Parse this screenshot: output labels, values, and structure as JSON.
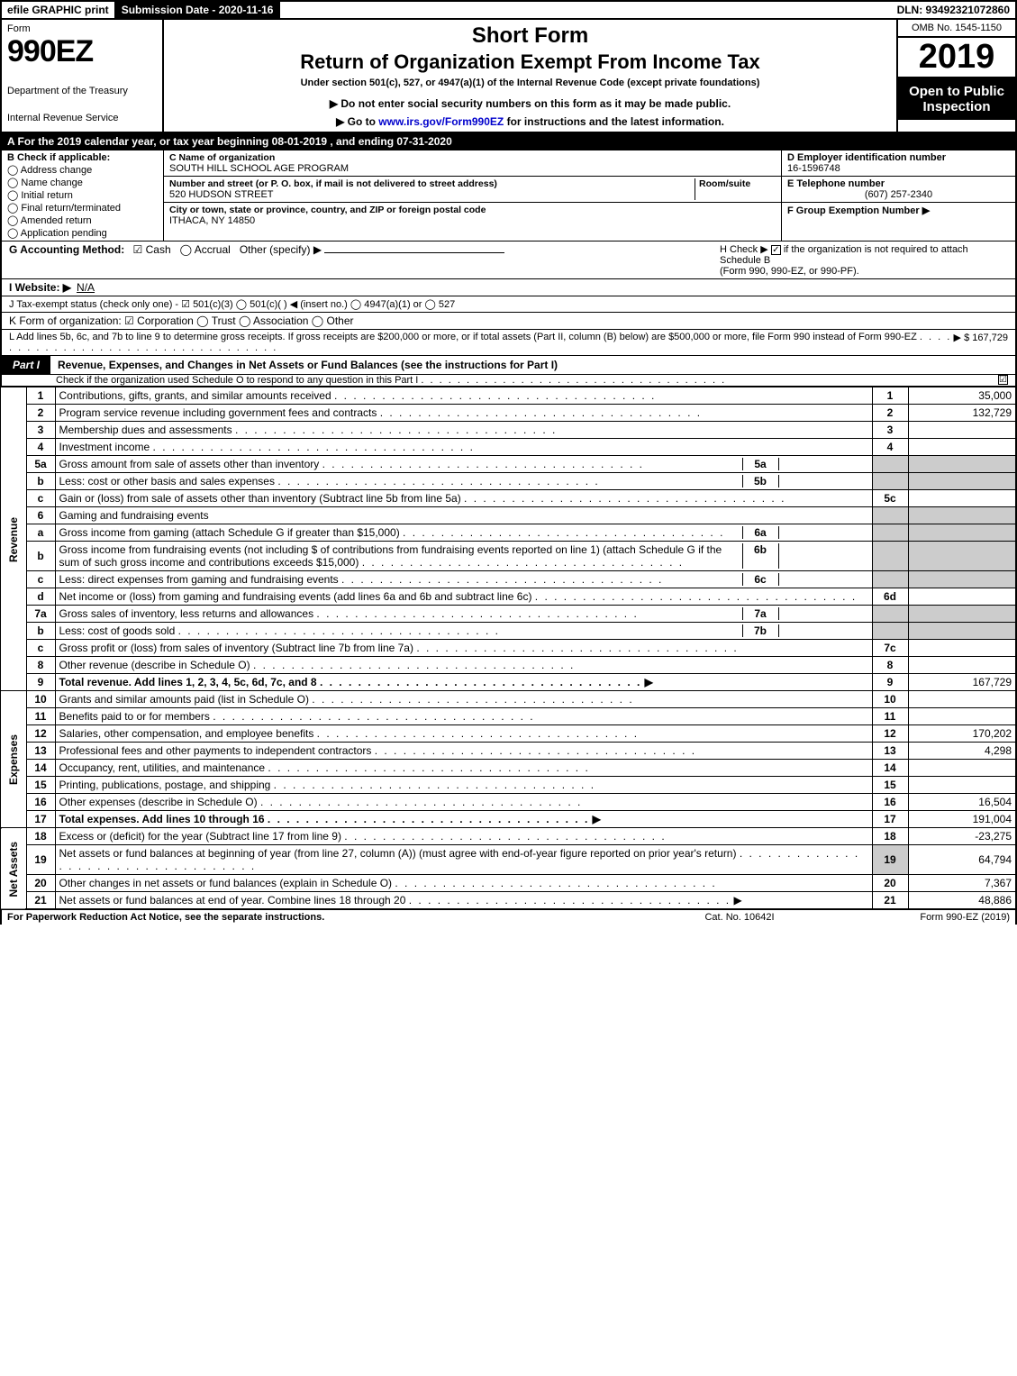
{
  "topbar": {
    "efile": "efile GRAPHIC print",
    "submission": "Submission Date - 2020-11-16",
    "dln": "DLN: 93492321072860"
  },
  "header": {
    "form_word": "Form",
    "form_no": "990EZ",
    "dept1": "Department of the Treasury",
    "dept2": "Internal Revenue Service",
    "short": "Short Form",
    "return": "Return of Organization Exempt From Income Tax",
    "under": "Under section 501(c), 527, or 4947(a)(1) of the Internal Revenue Code (except private foundations)",
    "warn": "▶ Do not enter social security numbers on this form as it may be made public.",
    "goto_pre": "▶ Go to ",
    "goto_link": "www.irs.gov/Form990EZ",
    "goto_post": " for instructions and the latest information.",
    "omb": "OMB No. 1545-1150",
    "year": "2019",
    "open": "Open to Public Inspection"
  },
  "period": "A  For the 2019 calendar year, or tax year beginning 08-01-2019 , and ending 07-31-2020",
  "B": {
    "title": "B  Check if applicable:",
    "opts": [
      "Address change",
      "Name change",
      "Initial return",
      "Final return/terminated",
      "Amended return",
      "Application pending"
    ]
  },
  "C": {
    "name_hdr": "C Name of organization",
    "name": "SOUTH HILL SCHOOL AGE PROGRAM",
    "addr_hdr": "Number and street (or P. O. box, if mail is not delivered to street address)",
    "room_hdr": "Room/suite",
    "addr": "520 HUDSON STREET",
    "city_hdr": "City or town, state or province, country, and ZIP or foreign postal code",
    "city": "ITHACA, NY  14850"
  },
  "D": {
    "hdr": "D Employer identification number",
    "val": "16-1596748"
  },
  "E": {
    "hdr": "E Telephone number",
    "val": "(607) 257-2340"
  },
  "F": {
    "hdr": "F Group Exemption Number  ▶"
  },
  "G": {
    "lbl": "G Accounting Method:",
    "cash": "Cash",
    "accrual": "Accrual",
    "other": "Other (specify) ▶"
  },
  "H": {
    "txt1": "H  Check ▶ ",
    "txt2": " if the organization is not required to attach Schedule B",
    "txt3": "(Form 990, 990-EZ, or 990-PF)."
  },
  "I": {
    "lbl": "I Website: ▶",
    "val": "N/A"
  },
  "J": {
    "txt": "J Tax-exempt status (check only one) -  ☑ 501(c)(3)  ◯ 501(c)(  ) ◀ (insert no.)  ◯ 4947(a)(1) or  ◯ 527"
  },
  "K": {
    "txt": "K Form of organization:   ☑ Corporation   ◯ Trust   ◯ Association   ◯ Other"
  },
  "L": {
    "txt": "L Add lines 5b, 6c, and 7b to line 9 to determine gross receipts. If gross receipts are $200,000 or more, or if total assets (Part II, column (B) below) are $500,000 or more, file Form 990 instead of Form 990-EZ",
    "amt": "▶ $ 167,729"
  },
  "part1": {
    "tag": "Part I",
    "title": "Revenue, Expenses, and Changes in Net Assets or Fund Balances (see the instructions for Part I)",
    "sub": "Check if the organization used Schedule O to respond to any question in this Part I",
    "ck": "☑"
  },
  "sections": {
    "rev": "Revenue",
    "exp": "Expenses",
    "net": "Net Assets"
  },
  "lines": [
    {
      "n": "1",
      "d": "Contributions, gifts, grants, and similar amounts received",
      "box": "1",
      "v": "35,000"
    },
    {
      "n": "2",
      "d": "Program service revenue including government fees and contracts",
      "box": "2",
      "v": "132,729"
    },
    {
      "n": "3",
      "d": "Membership dues and assessments",
      "box": "3",
      "v": ""
    },
    {
      "n": "4",
      "d": "Investment income",
      "box": "4",
      "v": ""
    },
    {
      "n": "5a",
      "d": "Gross amount from sale of assets other than inventory",
      "ib": "5a",
      "iv": "",
      "shade": true
    },
    {
      "n": "b",
      "d": "Less: cost or other basis and sales expenses",
      "ib": "5b",
      "iv": "",
      "shade": true
    },
    {
      "n": "c",
      "d": "Gain or (loss) from sale of assets other than inventory (Subtract line 5b from line 5a)",
      "box": "5c",
      "v": ""
    },
    {
      "n": "6",
      "d": "Gaming and fundraising events",
      "shade": true,
      "noline": true
    },
    {
      "n": "a",
      "d": "Gross income from gaming (attach Schedule G if greater than $15,000)",
      "ib": "6a",
      "iv": "",
      "shade": true
    },
    {
      "n": "b",
      "d": "Gross income from fundraising events (not including $                of contributions from fundraising events reported on line 1) (attach Schedule G if the sum of such gross income and contributions exceeds $15,000)",
      "ib": "6b",
      "iv": "",
      "shade": true
    },
    {
      "n": "c",
      "d": "Less: direct expenses from gaming and fundraising events",
      "ib": "6c",
      "iv": "",
      "shade": true
    },
    {
      "n": "d",
      "d": "Net income or (loss) from gaming and fundraising events (add lines 6a and 6b and subtract line 6c)",
      "box": "6d",
      "v": ""
    },
    {
      "n": "7a",
      "d": "Gross sales of inventory, less returns and allowances",
      "ib": "7a",
      "iv": "",
      "shade": true
    },
    {
      "n": "b",
      "d": "Less: cost of goods sold",
      "ib": "7b",
      "iv": "",
      "shade": true
    },
    {
      "n": "c",
      "d": "Gross profit or (loss) from sales of inventory (Subtract line 7b from line 7a)",
      "box": "7c",
      "v": ""
    },
    {
      "n": "8",
      "d": "Other revenue (describe in Schedule O)",
      "box": "8",
      "v": ""
    },
    {
      "n": "9",
      "d": "Total revenue. Add lines 1, 2, 3, 4, 5c, 6d, 7c, and 8",
      "box": "9",
      "v": "167,729",
      "bold": true,
      "arrow": true
    }
  ],
  "exp_lines": [
    {
      "n": "10",
      "d": "Grants and similar amounts paid (list in Schedule O)",
      "box": "10",
      "v": ""
    },
    {
      "n": "11",
      "d": "Benefits paid to or for members",
      "box": "11",
      "v": ""
    },
    {
      "n": "12",
      "d": "Salaries, other compensation, and employee benefits",
      "box": "12",
      "v": "170,202"
    },
    {
      "n": "13",
      "d": "Professional fees and other payments to independent contractors",
      "box": "13",
      "v": "4,298"
    },
    {
      "n": "14",
      "d": "Occupancy, rent, utilities, and maintenance",
      "box": "14",
      "v": ""
    },
    {
      "n": "15",
      "d": "Printing, publications, postage, and shipping",
      "box": "15",
      "v": ""
    },
    {
      "n": "16",
      "d": "Other expenses (describe in Schedule O)",
      "box": "16",
      "v": "16,504"
    },
    {
      "n": "17",
      "d": "Total expenses. Add lines 10 through 16",
      "box": "17",
      "v": "191,004",
      "bold": true,
      "arrow": true
    }
  ],
  "net_lines": [
    {
      "n": "18",
      "d": "Excess or (deficit) for the year (Subtract line 17 from line 9)",
      "box": "18",
      "v": "-23,275"
    },
    {
      "n": "19",
      "d": "Net assets or fund balances at beginning of year (from line 27, column (A)) (must agree with end-of-year figure reported on prior year's return)",
      "box": "19",
      "v": "64,794",
      "shade_first": true
    },
    {
      "n": "20",
      "d": "Other changes in net assets or fund balances (explain in Schedule O)",
      "box": "20",
      "v": "7,367"
    },
    {
      "n": "21",
      "d": "Net assets or fund balances at end of year. Combine lines 18 through 20",
      "box": "21",
      "v": "48,886",
      "arrow": true
    }
  ],
  "footer": {
    "left": "For Paperwork Reduction Act Notice, see the separate instructions.",
    "mid": "Cat. No. 10642I",
    "right": "Form 990-EZ (2019)"
  }
}
